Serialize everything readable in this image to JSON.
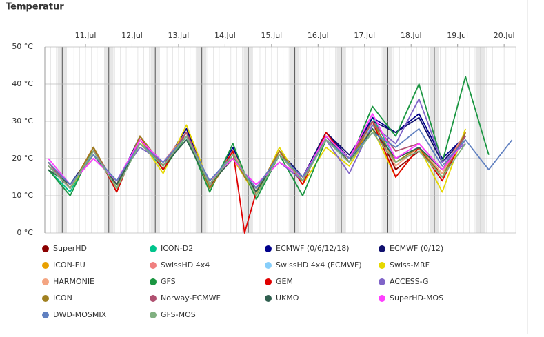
{
  "chart_data": {
    "type": "line",
    "title": "Temperatur",
    "x": [
      10.7,
      11.17,
      11.67,
      12.17,
      12.67,
      13.17,
      13.67,
      14.17,
      14.67,
      14.92,
      15.17,
      15.67,
      16.17,
      16.67,
      17.17,
      17.67,
      18.17,
      18.67,
      19.17,
      19.67,
      20.17,
      20.67
    ],
    "xlim": [
      10.625,
      20.75
    ],
    "xticks": [
      {
        "value": 11.5,
        "label": "11.Jul"
      },
      {
        "value": 12.5,
        "label": "12.Jul"
      },
      {
        "value": 13.5,
        "label": "13.Jul"
      },
      {
        "value": 14.5,
        "label": "14.Jul"
      },
      {
        "value": 15.5,
        "label": "15.Jul"
      },
      {
        "value": 16.5,
        "label": "16.Jul"
      },
      {
        "value": 17.5,
        "label": "17.Jul"
      },
      {
        "value": 18.5,
        "label": "18.Jul"
      },
      {
        "value": 19.5,
        "label": "19.Jul"
      },
      {
        "value": 20.5,
        "label": "20.Jul"
      }
    ],
    "ylim": [
      0,
      50
    ],
    "yticks": [
      {
        "value": 0,
        "label": "0 °C"
      },
      {
        "value": 10,
        "label": "10 °C"
      },
      {
        "value": 20,
        "label": "20 °C"
      },
      {
        "value": 30,
        "label": "30 °C"
      },
      {
        "value": 40,
        "label": "40 °C"
      },
      {
        "value": 50,
        "label": "50 °C"
      }
    ],
    "grid": true,
    "series": [
      {
        "name": "SuperHD",
        "color": "#8b0000",
        "values": [
          18,
          12,
          23,
          12,
          26,
          18,
          28,
          13,
          22,
          15,
          12,
          21,
          14,
          27,
          20,
          30,
          17,
          22,
          16,
          27,
          null,
          null
        ]
      },
      {
        "name": "ICON-D2",
        "color": "#00c48c",
        "values": [
          17,
          11,
          23,
          12,
          25,
          17,
          27,
          12,
          22,
          16,
          10,
          21,
          14,
          26,
          19,
          31,
          20,
          23,
          16,
          26,
          null,
          null
        ]
      },
      {
        "name": "ECMWF (0/6/12/18)",
        "color": "#00008b",
        "values": [
          18,
          12,
          22,
          13,
          26,
          18,
          28,
          12,
          23,
          16,
          11,
          22,
          15,
          27,
          20,
          31,
          27,
          32,
          20,
          26,
          null,
          null
        ]
      },
      {
        "name": "ECMWF (0/12)",
        "color": "#10106e",
        "values": [
          18,
          13,
          22,
          13,
          25,
          18,
          27,
          13,
          22,
          16,
          11,
          22,
          15,
          27,
          21,
          30,
          27,
          31,
          19,
          26,
          null,
          null
        ]
      },
      {
        "name": "ICON-EU",
        "color": "#e8a000",
        "values": [
          19,
          12,
          23,
          12,
          26,
          18,
          27,
          12,
          21,
          15,
          10,
          22,
          14,
          26,
          19,
          29,
          19,
          23,
          16,
          27,
          null,
          null
        ]
      },
      {
        "name": "SwissHD 4x4",
        "color": "#f08080",
        "values": [
          19,
          12,
          22,
          13,
          25,
          19,
          27,
          13,
          21,
          16,
          12,
          21,
          14,
          26,
          20,
          29,
          20,
          23,
          17,
          27,
          null,
          null
        ]
      },
      {
        "name": "SwissHD 4x4 (ECMWF)",
        "color": "#87cefa",
        "values": [
          18,
          12,
          22,
          13,
          25,
          19,
          26,
          13,
          21,
          16,
          12,
          21,
          14,
          26,
          20,
          29,
          20,
          23,
          17,
          26,
          null,
          null
        ]
      },
      {
        "name": "Swiss-MRF",
        "color": "#e6d800",
        "values": [
          19,
          12,
          21,
          13,
          25,
          16,
          29,
          13,
          20,
          15,
          10,
          23,
          13,
          23,
          18,
          28,
          15,
          23,
          11,
          28,
          null,
          null
        ]
      },
      {
        "name": "HARMONIE",
        "color": "#f4a582",
        "values": [
          19,
          12,
          22,
          12,
          25,
          18,
          27,
          13,
          22,
          16,
          11,
          22,
          14,
          26,
          20,
          30,
          18,
          23,
          16,
          27,
          null,
          null
        ]
      },
      {
        "name": "GFS",
        "color": "#1a9641",
        "values": [
          17,
          10,
          23,
          11,
          26,
          17,
          26,
          11,
          24,
          16,
          9,
          21,
          10,
          25,
          19,
          34,
          26,
          40,
          19,
          42,
          21,
          null
        ]
      },
      {
        "name": "GEM",
        "color": "#e00000",
        "values": [
          18,
          12,
          23,
          11,
          26,
          17,
          27,
          12,
          22,
          0,
          11,
          22,
          13,
          27,
          19,
          30,
          15,
          23,
          14,
          27,
          null,
          null
        ]
      },
      {
        "name": "ACCESS-G",
        "color": "#8064c8",
        "values": [
          18,
          13,
          20,
          14,
          23,
          19,
          26,
          14,
          20,
          16,
          13,
          19,
          14,
          25,
          16,
          29,
          24,
          36,
          19,
          24,
          null,
          null
        ]
      },
      {
        "name": "ICON",
        "color": "#a08020",
        "values": [
          18,
          12,
          23,
          12,
          26,
          18,
          27,
          12,
          21,
          15,
          11,
          22,
          14,
          26,
          19,
          30,
          19,
          23,
          15,
          27,
          null,
          null
        ]
      },
      {
        "name": "Norway-ECMWF",
        "color": "#b05070",
        "values": [
          19,
          12,
          22,
          13,
          25,
          18,
          27,
          13,
          21,
          16,
          12,
          21,
          14,
          26,
          20,
          30,
          22,
          24,
          17,
          26,
          null,
          null
        ]
      },
      {
        "name": "UKMO",
        "color": "#2f5f4f",
        "values": [
          17,
          13,
          21,
          13,
          24,
          18,
          25,
          13,
          20,
          16,
          11,
          21,
          15,
          26,
          19,
          28,
          20,
          23,
          17,
          25,
          null,
          null
        ]
      },
      {
        "name": "SuperHD-MOS",
        "color": "#ff40ff",
        "values": [
          20,
          13,
          20,
          14,
          25,
          19,
          26,
          14,
          20,
          16,
          13,
          19,
          15,
          26,
          20,
          32,
          20,
          24,
          17,
          25,
          null,
          null
        ]
      },
      {
        "name": "DWD-MOSMIX",
        "color": "#6080c0",
        "values": [
          19,
          13,
          21,
          14,
          24,
          19,
          26,
          14,
          21,
          16,
          12,
          21,
          15,
          25,
          20,
          27,
          23,
          28,
          18,
          25,
          17,
          25
        ]
      },
      {
        "name": "GFS-MOS",
        "color": "#80b080",
        "values": [
          18,
          12,
          22,
          12,
          24,
          18,
          26,
          13,
          21,
          16,
          10,
          21,
          14,
          25,
          19,
          27,
          19,
          22,
          15,
          24,
          null,
          null
        ]
      }
    ]
  }
}
